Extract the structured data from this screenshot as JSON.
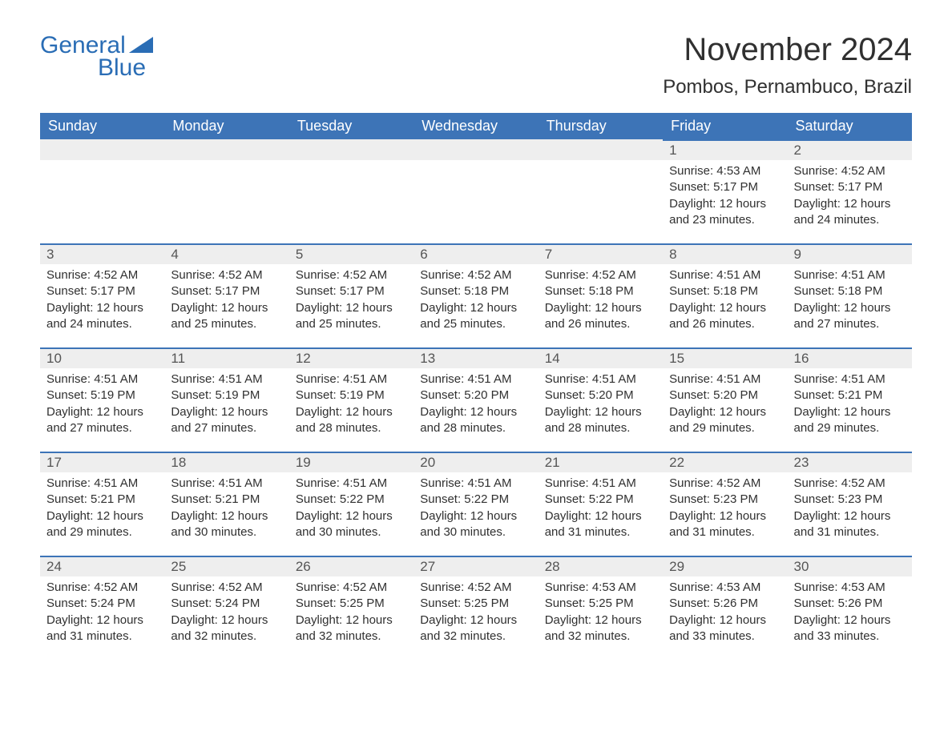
{
  "logo": {
    "word1": "General",
    "word2": "Blue",
    "color": "#2a6db5"
  },
  "title": "November 2024",
  "location": "Pombos, Pernambuco, Brazil",
  "colors": {
    "header_bg": "#3d74b7",
    "header_text": "#ffffff",
    "daynum_bg": "#eeeeee",
    "daynum_border": "#3d74b7",
    "body_bg": "#ffffff",
    "text": "#303030"
  },
  "weekdays": [
    "Sunday",
    "Monday",
    "Tuesday",
    "Wednesday",
    "Thursday",
    "Friday",
    "Saturday"
  ],
  "weeks": [
    [
      null,
      null,
      null,
      null,
      null,
      {
        "n": "1",
        "sunrise": "4:53 AM",
        "sunset": "5:17 PM",
        "daylight": "12 hours and 23 minutes."
      },
      {
        "n": "2",
        "sunrise": "4:52 AM",
        "sunset": "5:17 PM",
        "daylight": "12 hours and 24 minutes."
      }
    ],
    [
      {
        "n": "3",
        "sunrise": "4:52 AM",
        "sunset": "5:17 PM",
        "daylight": "12 hours and 24 minutes."
      },
      {
        "n": "4",
        "sunrise": "4:52 AM",
        "sunset": "5:17 PM",
        "daylight": "12 hours and 25 minutes."
      },
      {
        "n": "5",
        "sunrise": "4:52 AM",
        "sunset": "5:17 PM",
        "daylight": "12 hours and 25 minutes."
      },
      {
        "n": "6",
        "sunrise": "4:52 AM",
        "sunset": "5:18 PM",
        "daylight": "12 hours and 25 minutes."
      },
      {
        "n": "7",
        "sunrise": "4:52 AM",
        "sunset": "5:18 PM",
        "daylight": "12 hours and 26 minutes."
      },
      {
        "n": "8",
        "sunrise": "4:51 AM",
        "sunset": "5:18 PM",
        "daylight": "12 hours and 26 minutes."
      },
      {
        "n": "9",
        "sunrise": "4:51 AM",
        "sunset": "5:18 PM",
        "daylight": "12 hours and 27 minutes."
      }
    ],
    [
      {
        "n": "10",
        "sunrise": "4:51 AM",
        "sunset": "5:19 PM",
        "daylight": "12 hours and 27 minutes."
      },
      {
        "n": "11",
        "sunrise": "4:51 AM",
        "sunset": "5:19 PM",
        "daylight": "12 hours and 27 minutes."
      },
      {
        "n": "12",
        "sunrise": "4:51 AM",
        "sunset": "5:19 PM",
        "daylight": "12 hours and 28 minutes."
      },
      {
        "n": "13",
        "sunrise": "4:51 AM",
        "sunset": "5:20 PM",
        "daylight": "12 hours and 28 minutes."
      },
      {
        "n": "14",
        "sunrise": "4:51 AM",
        "sunset": "5:20 PM",
        "daylight": "12 hours and 28 minutes."
      },
      {
        "n": "15",
        "sunrise": "4:51 AM",
        "sunset": "5:20 PM",
        "daylight": "12 hours and 29 minutes."
      },
      {
        "n": "16",
        "sunrise": "4:51 AM",
        "sunset": "5:21 PM",
        "daylight": "12 hours and 29 minutes."
      }
    ],
    [
      {
        "n": "17",
        "sunrise": "4:51 AM",
        "sunset": "5:21 PM",
        "daylight": "12 hours and 29 minutes."
      },
      {
        "n": "18",
        "sunrise": "4:51 AM",
        "sunset": "5:21 PM",
        "daylight": "12 hours and 30 minutes."
      },
      {
        "n": "19",
        "sunrise": "4:51 AM",
        "sunset": "5:22 PM",
        "daylight": "12 hours and 30 minutes."
      },
      {
        "n": "20",
        "sunrise": "4:51 AM",
        "sunset": "5:22 PM",
        "daylight": "12 hours and 30 minutes."
      },
      {
        "n": "21",
        "sunrise": "4:51 AM",
        "sunset": "5:22 PM",
        "daylight": "12 hours and 31 minutes."
      },
      {
        "n": "22",
        "sunrise": "4:52 AM",
        "sunset": "5:23 PM",
        "daylight": "12 hours and 31 minutes."
      },
      {
        "n": "23",
        "sunrise": "4:52 AM",
        "sunset": "5:23 PM",
        "daylight": "12 hours and 31 minutes."
      }
    ],
    [
      {
        "n": "24",
        "sunrise": "4:52 AM",
        "sunset": "5:24 PM",
        "daylight": "12 hours and 31 minutes."
      },
      {
        "n": "25",
        "sunrise": "4:52 AM",
        "sunset": "5:24 PM",
        "daylight": "12 hours and 32 minutes."
      },
      {
        "n": "26",
        "sunrise": "4:52 AM",
        "sunset": "5:25 PM",
        "daylight": "12 hours and 32 minutes."
      },
      {
        "n": "27",
        "sunrise": "4:52 AM",
        "sunset": "5:25 PM",
        "daylight": "12 hours and 32 minutes."
      },
      {
        "n": "28",
        "sunrise": "4:53 AM",
        "sunset": "5:25 PM",
        "daylight": "12 hours and 32 minutes."
      },
      {
        "n": "29",
        "sunrise": "4:53 AM",
        "sunset": "5:26 PM",
        "daylight": "12 hours and 33 minutes."
      },
      {
        "n": "30",
        "sunrise": "4:53 AM",
        "sunset": "5:26 PM",
        "daylight": "12 hours and 33 minutes."
      }
    ]
  ],
  "labels": {
    "sunrise": "Sunrise:",
    "sunset": "Sunset:",
    "daylight": "Daylight:"
  }
}
